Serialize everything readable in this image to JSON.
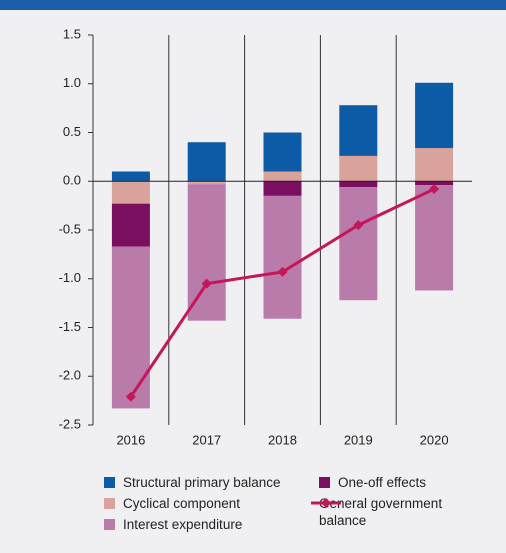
{
  "chart_data": {
    "type": "bar",
    "categories": [
      "2016",
      "2017",
      "2018",
      "2019",
      "2020"
    ],
    "series": [
      {
        "name": "Structural primary balance",
        "color": "#0d5aa7",
        "values": [
          0.1,
          0.4,
          0.4,
          0.52,
          0.67
        ]
      },
      {
        "name": "Cyclical component",
        "color": "#d9a39c",
        "values": [
          -0.23,
          -0.03,
          0.1,
          0.26,
          0.34
        ]
      },
      {
        "name": "Interest expenditure",
        "color": "#b97ba9",
        "values": [
          -1.66,
          -1.4,
          -1.26,
          -1.16,
          -1.08
        ]
      },
      {
        "name": "One-off effects",
        "color": "#7b0f5f",
        "values": [
          -0.44,
          0,
          -0.15,
          -0.06,
          -0.04
        ]
      },
      {
        "name": "General government balance",
        "color": "#c4175a",
        "type": "line",
        "values": [
          -2.21,
          -1.05,
          -0.93,
          -0.45,
          -0.08
        ]
      }
    ],
    "ylim": [
      -2.5,
      1.5
    ],
    "yticks": [
      1.5,
      {
        "value": 1.0,
        "label": "1.0"
      },
      0.5,
      {
        "value": 0.0,
        "label": "0.0"
      },
      -0.5,
      {
        "value": -1.0,
        "label": "-1.0"
      },
      -1.5,
      {
        "value": -2.0,
        "label": "-2.0"
      },
      -2.5
    ]
  }
}
